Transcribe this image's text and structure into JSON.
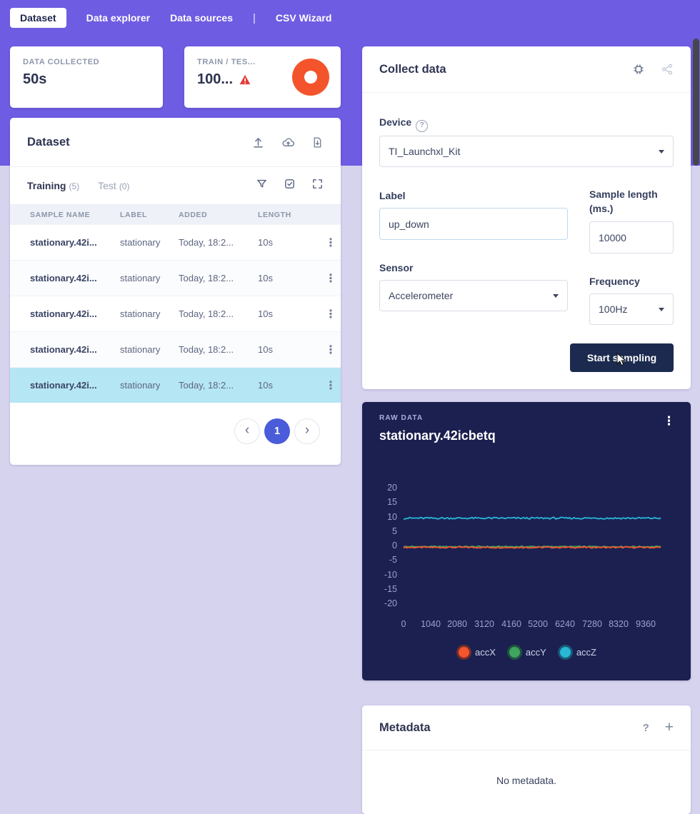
{
  "colors": {
    "accent": "#6e5ce2",
    "bg_light": "#d6d3ef",
    "donut": "#f4542c",
    "selected_row": "#b5e6f3",
    "button": "#1b2a4e",
    "raw_bg": "#1b2050",
    "pagination": "#4a5cd9",
    "warning": "#e23b3b"
  },
  "nav": {
    "items": [
      {
        "label": "Dataset",
        "active": true
      },
      {
        "label": "Data explorer",
        "active": false
      },
      {
        "label": "Data sources",
        "active": false
      },
      {
        "label": "CSV Wizard",
        "active": false
      }
    ],
    "separator": "|"
  },
  "stats": {
    "data_collected": {
      "title": "DATA COLLECTED",
      "value": "50s"
    },
    "train_test": {
      "title": "TRAIN / TES...",
      "value": "100..."
    }
  },
  "dataset": {
    "title": "Dataset",
    "tabs": {
      "training": {
        "label": "Training",
        "count": "(5)"
      },
      "test": {
        "label": "Test",
        "count": "(0)"
      }
    },
    "table": {
      "headers": [
        "SAMPLE NAME",
        "LABEL",
        "ADDED",
        "LENGTH"
      ],
      "rows": [
        {
          "name": "stationary.42i...",
          "label": "stationary",
          "added": "Today, 18:2...",
          "length": "10s",
          "selected": false
        },
        {
          "name": "stationary.42i...",
          "label": "stationary",
          "added": "Today, 18:2...",
          "length": "10s",
          "selected": false
        },
        {
          "name": "stationary.42i...",
          "label": "stationary",
          "added": "Today, 18:2...",
          "length": "10s",
          "selected": false
        },
        {
          "name": "stationary.42i...",
          "label": "stationary",
          "added": "Today, 18:2...",
          "length": "10s",
          "selected": false
        },
        {
          "name": "stationary.42i...",
          "label": "stationary",
          "added": "Today, 18:2...",
          "length": "10s",
          "selected": true
        }
      ]
    },
    "pagination": {
      "current": "1"
    }
  },
  "collect": {
    "title": "Collect data",
    "device_label": "Device",
    "device_value": "TI_Launchxl_Kit",
    "label_label": "Label",
    "label_value": "up_down",
    "sample_length_label": "Sample length (ms.)",
    "sample_length_value": "10000",
    "sensor_label": "Sensor",
    "sensor_value": "Accelerometer",
    "frequency_label": "Frequency",
    "frequency_value": "100Hz",
    "start_button": "Start sampling"
  },
  "raw_data": {
    "kicker": "RAW DATA",
    "title": "stationary.42icbetq",
    "chart_data": {
      "type": "line",
      "title": "stationary.42icbetq",
      "xlabel": "",
      "ylabel": "",
      "xlim": [
        0,
        9880
      ],
      "ylim": [
        -20,
        20
      ],
      "grid": false,
      "legend_position": "bottom",
      "x_ticks": [
        0,
        1040,
        2080,
        3120,
        4160,
        5200,
        6240,
        7280,
        8320,
        9360
      ],
      "y_ticks": [
        20,
        15,
        10,
        5,
        0,
        -5,
        -10,
        -15,
        -20
      ],
      "series": [
        {
          "name": "accX",
          "color": "#f4552e",
          "mean": -0.4,
          "noise": 0.25
        },
        {
          "name": "accY",
          "color": "#3fa45f",
          "mean": -0.15,
          "noise": 0.2
        },
        {
          "name": "accZ",
          "color": "#29b7d8",
          "mean": 9.7,
          "noise": 0.3
        }
      ]
    }
  },
  "metadata": {
    "title": "Metadata",
    "empty_text": "No metadata."
  },
  "icons": {
    "kebab": "⋮",
    "prev": "‹",
    "next": "›",
    "question": "?",
    "plus": "+"
  }
}
